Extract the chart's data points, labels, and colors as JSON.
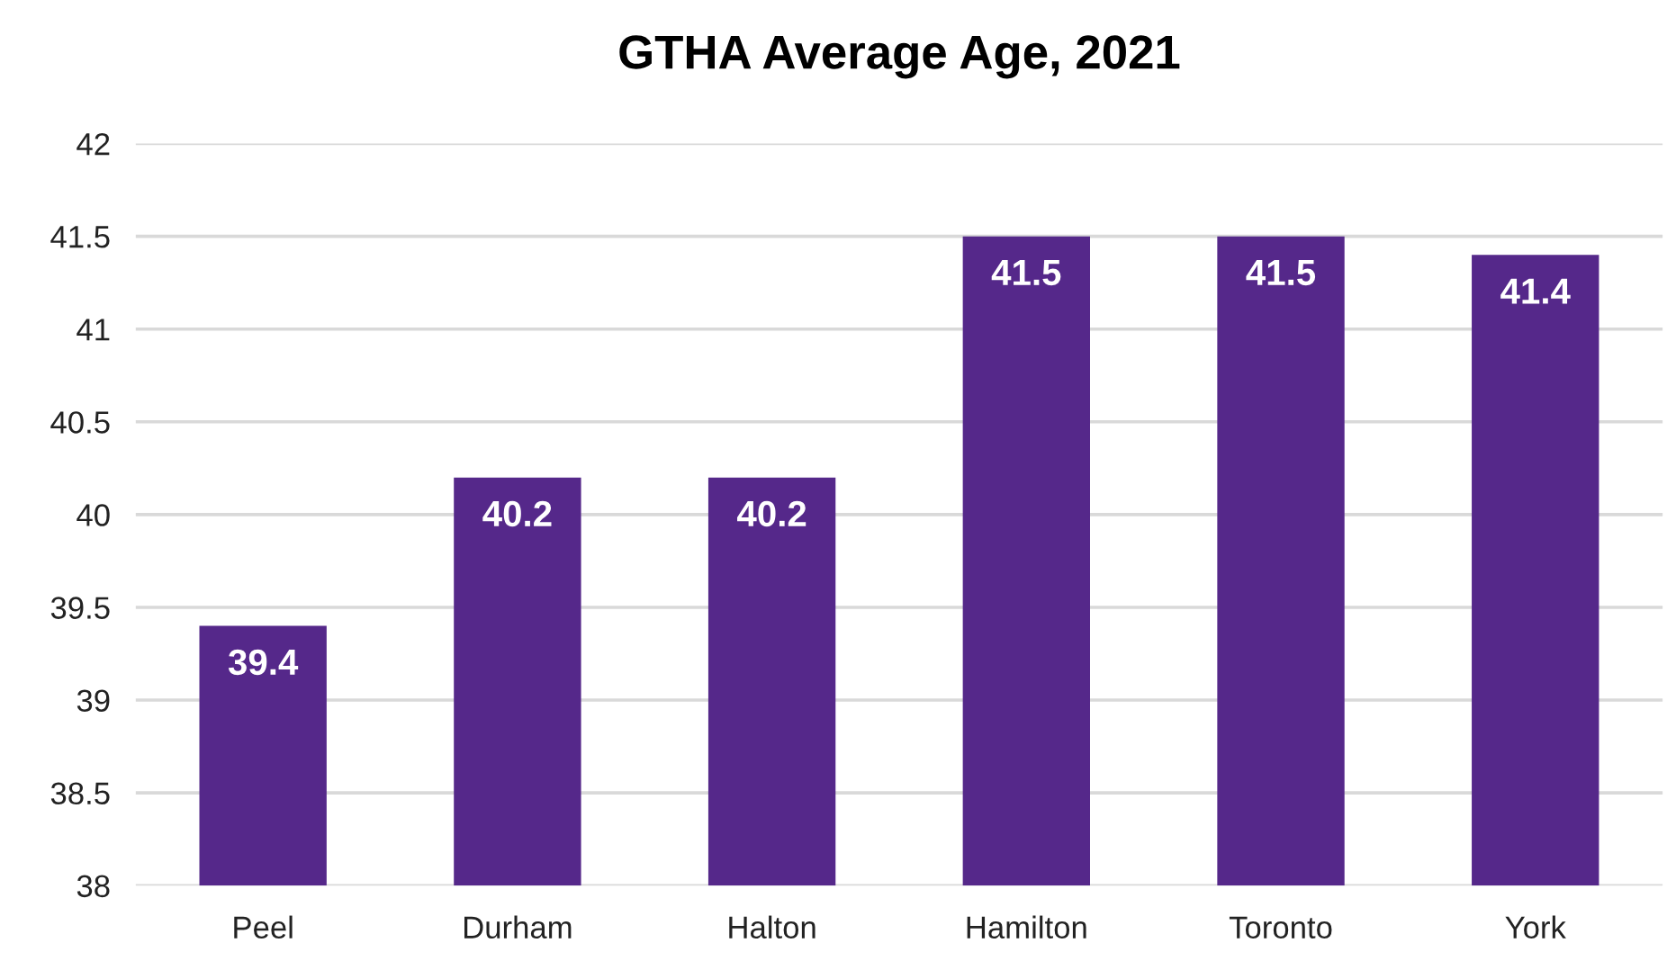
{
  "chart_data": {
    "type": "bar",
    "title": "GTHA Average Age, 2021",
    "categories": [
      "Peel",
      "Durham",
      "Halton",
      "Hamilton",
      "Toronto",
      "York"
    ],
    "values": [
      39.4,
      40.2,
      40.2,
      41.5,
      41.5,
      41.4
    ],
    "color": "#55288a",
    "ylim": [
      38,
      42
    ],
    "yticks": [
      38,
      38.5,
      39,
      39.5,
      40,
      40.5,
      41,
      41.5,
      42
    ],
    "grid": "y",
    "data_labels": true
  }
}
